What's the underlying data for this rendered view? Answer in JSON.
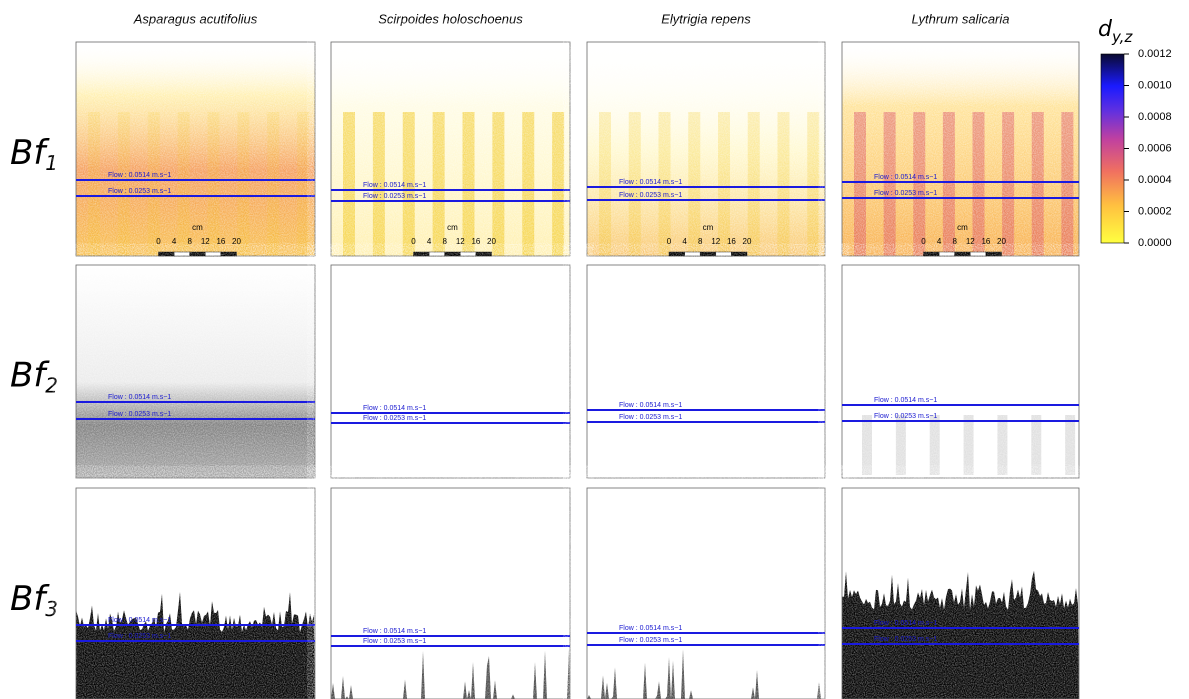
{
  "columns": [
    "Asparagus acutifolius",
    "Scirpoides holoschoenus",
    "Elytrigia repens",
    "Lythrum salicaria"
  ],
  "rows": [
    {
      "label": "Bf",
      "subscript": "1"
    },
    {
      "label": "Bf",
      "subscript": "2"
    },
    {
      "label": "Bf",
      "subscript": "3"
    }
  ],
  "flow_labels": [
    "Flow : 0.0514 m.s−1",
    "Flow : 0.0253 m.s−1"
  ],
  "scale_bar": {
    "unit": "cm",
    "ticks": [
      "0",
      "4",
      "8",
      "12",
      "16",
      "20"
    ]
  },
  "colorbar": {
    "title": "d",
    "subscript": "y,z",
    "lim": [
      0,
      0.0012
    ],
    "ticks": [
      {
        "value": 0.0012,
        "label": "0.0012"
      },
      {
        "value": 0.001,
        "label": "0.0010"
      },
      {
        "value": 0.0008,
        "label": "0.0008"
      },
      {
        "value": 0.0006,
        "label": "0.0006"
      },
      {
        "value": 0.0004,
        "label": "0.0004"
      },
      {
        "value": 0.0002,
        "label": "0.0002"
      },
      {
        "value": 0,
        "label": "0.0000"
      }
    ]
  }
}
